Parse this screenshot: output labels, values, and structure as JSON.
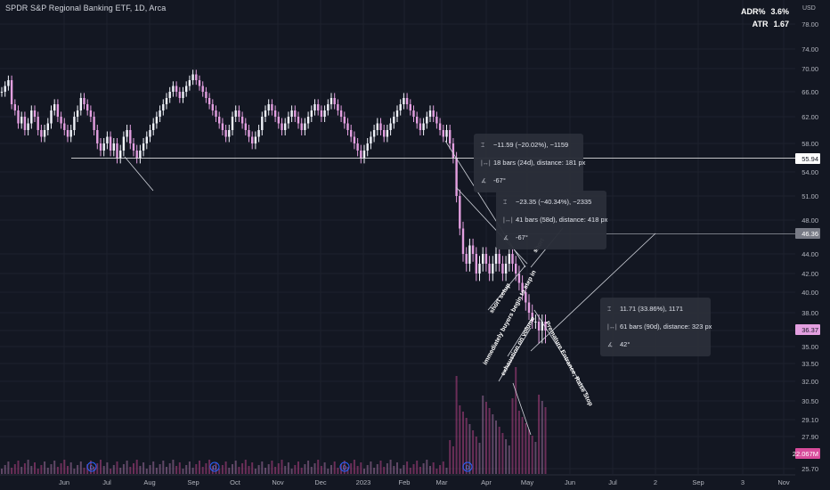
{
  "header": {
    "title": "SPDR S&P Regional Banking ETF, 1D, Arca",
    "currency": "USD"
  },
  "stats": [
    {
      "label": "ADR%",
      "value": "3.6%"
    },
    {
      "label": "ATR",
      "value": "1.67"
    }
  ],
  "chart_data": {
    "type": "candlestick",
    "symbol": "KRE",
    "yaxis": {
      "scale": "log",
      "ticks": [
        "78.00",
        "74.00",
        "70.00",
        "66.00",
        "62.00",
        "58.00",
        "54.00",
        "51.00",
        "48.00",
        "44.00",
        "42.00",
        "40.00",
        "38.00",
        "36.00",
        "35.00",
        "33.50",
        "32.00",
        "30.50",
        "29.10",
        "27.90",
        "25.70"
      ]
    },
    "xaxis": {
      "ticks": [
        "Jun",
        "Jul",
        "Aug",
        "Sep",
        "Oct",
        "Nov",
        "Dec",
        "2023",
        "Feb",
        "Mar",
        "Apr",
        "May",
        "Jun",
        "Jul",
        "2",
        "Sep",
        "3",
        "Nov"
      ]
    },
    "price_labels": [
      {
        "value": "55.94",
        "color": "#ffffff",
        "text_color": "#131722"
      },
      {
        "value": "46.36",
        "color": "#787b86",
        "text_color": "#ffffff"
      },
      {
        "value": "36.37",
        "color": "#e39fe0",
        "text_color": "#131722"
      },
      {
        "value": "22.067M",
        "color": "#d84b9b",
        "text_color": "#ffffff"
      }
    ],
    "horizontal_levels": [
      55.94,
      46.36
    ],
    "close_series": [
      66,
      67,
      68,
      64,
      63,
      61,
      62,
      60,
      61,
      63,
      62,
      60,
      59,
      60,
      61,
      63,
      64,
      62,
      61,
      60,
      59,
      60,
      62,
      63,
      65,
      64,
      63,
      62,
      60,
      58,
      57,
      58,
      59,
      57,
      58,
      56,
      57,
      59,
      60,
      58,
      57,
      56,
      57,
      58,
      59,
      60,
      61,
      62,
      63,
      64,
      65,
      66,
      67,
      66,
      65,
      66,
      67,
      68,
      69,
      68,
      67,
      66,
      65,
      64,
      63,
      62,
      61,
      60,
      59,
      60,
      62,
      63,
      62,
      61,
      60,
      59,
      58,
      59,
      60,
      62,
      63,
      64,
      63,
      62,
      61,
      60,
      61,
      62,
      63,
      62,
      61,
      60,
      61,
      62,
      63,
      64,
      63,
      62,
      63,
      64,
      65,
      64,
      63,
      62,
      61,
      60,
      59,
      58,
      57,
      56,
      57,
      58,
      59,
      60,
      61,
      60,
      59,
      60,
      61,
      62,
      63,
      64,
      65,
      64,
      63,
      62,
      61,
      60,
      61,
      62,
      63,
      62,
      61,
      60,
      59,
      60,
      58,
      56,
      51,
      47,
      44,
      43,
      45,
      44,
      42,
      43,
      44,
      43,
      42,
      43,
      44,
      43,
      42,
      43,
      44,
      43,
      42,
      41,
      40,
      39,
      38,
      37,
      37,
      36,
      37,
      36
    ],
    "close_series_note": "",
    "events": [
      "D",
      "D",
      "D",
      "D"
    ],
    "tooltips": [
      {
        "change": "−11.59 (−20.02%), −1159",
        "bars": "18 bars (24d), distance: 181 px",
        "angle": "-67°"
      },
      {
        "change": "−23.35 (−40.34%), −2335",
        "bars": "41 bars (58d), distance: 418 px",
        "angle": "-67°"
      },
      {
        "change": "11.71 (33.86%), 1171",
        "bars": "61 bars (90d), distance: 323 px",
        "angle": "42°"
      }
    ],
    "annotations": [
      "short setup",
      "immediately buyers begin to step in",
      "exhaustion on volume",
      "short",
      "Premature Entrance, Raise Stop"
    ]
  }
}
